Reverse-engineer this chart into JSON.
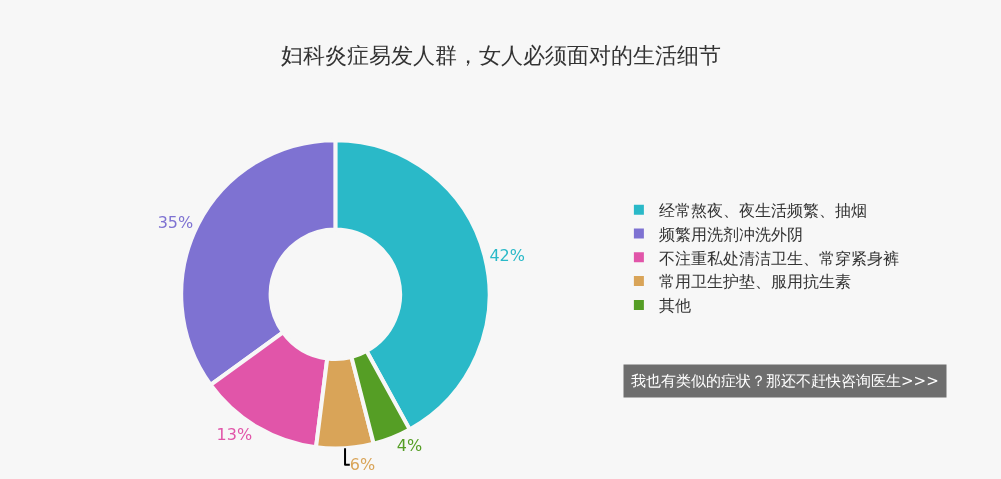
{
  "chart_data": {
    "type": "donut",
    "title": "妇科炎症易发人群，女人必须面对的生活细节",
    "categories": [
      "经常熬夜、夜生活频繁、抽烟",
      "频繁用洗剂冲洗外阴",
      "不注重私处清洁卫生、常穿紧身裤",
      "常用卫生护垫、服用抗生素",
      "其他"
    ],
    "values": [
      42,
      35,
      13,
      6,
      4
    ],
    "value_labels": [
      "42%",
      "35%",
      "13%",
      "6%",
      "4%"
    ],
    "colors": [
      "#2ab9c8",
      "#7e72d2",
      "#e155a9",
      "#d9a458",
      "#559e25"
    ],
    "legend": "right",
    "annotations": [
      "我也有类似的症状？那还不赶快咨询医生>>>"
    ]
  }
}
